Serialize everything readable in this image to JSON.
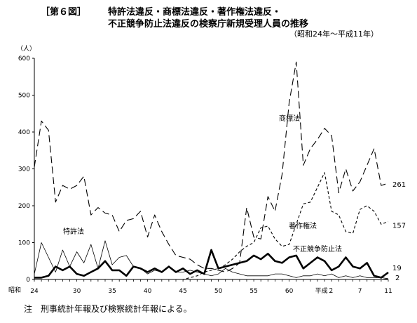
{
  "header": {
    "fig_number": "［第６図］",
    "title_line1": "特許法違反・商標法違反・著作権法違反・",
    "title_line2": "不正競争防止法違反の検察庁新規受理人員の推移",
    "subtitle": "（昭和24年～平成11年）"
  },
  "note": "注　刑事統計年報及び検察統計年報による。",
  "chart_data": {
    "type": "line",
    "y_unit": "（人）",
    "ylim": [
      0,
      600
    ],
    "yticks": [
      "0",
      "100",
      "200",
      "300",
      "400",
      "500",
      "600"
    ],
    "era_label": "昭和",
    "x_tick_labels": [
      "24",
      "30",
      "35",
      "40",
      "45",
      "50",
      "55",
      "60",
      "平成２",
      "7",
      "11"
    ],
    "x": [
      "S24",
      "S25",
      "S26",
      "S27",
      "S28",
      "S29",
      "S30",
      "S31",
      "S32",
      "S33",
      "S34",
      "S35",
      "S36",
      "S37",
      "S38",
      "S39",
      "S40",
      "S41",
      "S42",
      "S43",
      "S44",
      "S45",
      "S46",
      "S47",
      "S48",
      "S49",
      "S50",
      "S51",
      "S52",
      "S53",
      "S54",
      "S55",
      "S56",
      "S57",
      "S58",
      "S59",
      "S60",
      "S61",
      "S62",
      "S63",
      "H1",
      "H2",
      "H3",
      "H4",
      "H5",
      "H6",
      "H7",
      "H8",
      "H9",
      "H10",
      "H11"
    ],
    "series": [
      {
        "name": "商標法",
        "end_label": "261",
        "color": "#000000",
        "style": "long-dash",
        "values": [
          305,
          430,
          405,
          210,
          255,
          245,
          255,
          280,
          175,
          195,
          180,
          175,
          130,
          160,
          165,
          185,
          115,
          175,
          130,
          95,
          65,
          60,
          55,
          40,
          30,
          30,
          25,
          20,
          30,
          45,
          195,
          115,
          110,
          225,
          185,
          285,
          480,
          590,
          310,
          355,
          380,
          410,
          390,
          235,
          300,
          240,
          265,
          310,
          355,
          255,
          261
        ]
      },
      {
        "name": "著作権法",
        "end_label": "157",
        "color": "#000000",
        "style": "short-dash",
        "values": [
          0,
          0,
          0,
          0,
          0,
          0,
          0,
          0,
          0,
          0,
          0,
          0,
          0,
          0,
          0,
          0,
          0,
          0,
          0,
          0,
          0,
          0,
          5,
          10,
          20,
          25,
          30,
          40,
          55,
          75,
          90,
          100,
          140,
          145,
          110,
          90,
          95,
          150,
          205,
          210,
          250,
          290,
          185,
          175,
          130,
          125,
          190,
          200,
          185,
          150,
          157
        ]
      },
      {
        "name": "特許法",
        "end_label": "",
        "color": "#000000",
        "style": "thin-solid",
        "values": [
          15,
          100,
          60,
          20,
          80,
          35,
          75,
          45,
          95,
          30,
          105,
          40,
          60,
          65,
          35,
          30,
          15,
          25,
          20,
          35,
          20,
          20,
          25,
          20,
          15,
          10,
          15,
          30,
          20,
          15,
          10,
          10,
          10,
          10,
          15,
          15,
          10,
          5,
          10,
          10,
          15,
          10,
          15,
          5,
          10,
          5,
          10,
          5,
          5,
          5,
          2
        ]
      },
      {
        "name": "不正競争防止法",
        "end_label": "",
        "color": "#000000",
        "style": "thin-solid",
        "values": [
          0,
          0,
          0,
          0,
          0,
          0,
          0,
          0,
          0,
          0,
          0,
          0,
          0,
          0,
          0,
          0,
          0,
          0,
          0,
          0,
          0,
          0,
          0,
          0,
          0,
          0,
          0,
          0,
          0,
          0,
          0,
          0,
          0,
          0,
          0,
          0,
          0,
          0,
          0,
          0,
          0,
          0,
          0,
          0,
          0,
          0,
          0,
          0,
          0,
          0,
          2
        ]
      },
      {
        "name": "",
        "end_label": "19",
        "color": "#000000",
        "style": "bold-solid",
        "values": [
          5,
          5,
          10,
          35,
          25,
          35,
          15,
          10,
          20,
          30,
          50,
          25,
          25,
          10,
          35,
          30,
          20,
          30,
          20,
          35,
          20,
          30,
          15,
          25,
          15,
          80,
          30,
          35,
          40,
          45,
          50,
          65,
          55,
          70,
          50,
          45,
          60,
          65,
          30,
          45,
          60,
          50,
          25,
          35,
          60,
          35,
          30,
          45,
          10,
          5,
          19
        ]
      }
    ],
    "end_label_2": "2",
    "annotations": [
      "商標法",
      "著作権法",
      "特許法",
      "不正競争防止法"
    ]
  }
}
